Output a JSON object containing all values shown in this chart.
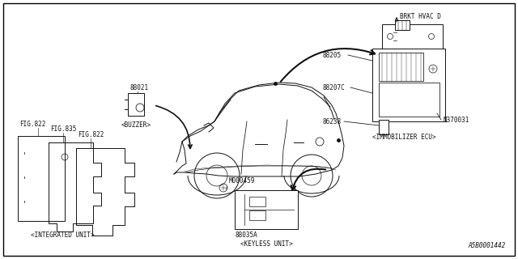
{
  "bg_color": "#ffffff",
  "border_color": "#000000",
  "diagram_id": "A5B0001442",
  "color": "#111111",
  "brkt_label": "BRKT HVAC D",
  "integrated_label": "<INTEGRATED UNIT>",
  "keyless_label": "<KEYLESS UNIT>",
  "buzzer_label": "<BUZZER>",
  "immob_label": "<IMMOBILIZER ECU>",
  "part_88021": "88021",
  "part_88205": "88205",
  "part_88207C": "88207C",
  "part_86238": "86238",
  "part_N370031": "N370031",
  "part_88035A": "88035A",
  "part_M000459": "M000459",
  "fig1": "FIG.822",
  "fig2": "FIG.835",
  "fig3": "FIG.822"
}
